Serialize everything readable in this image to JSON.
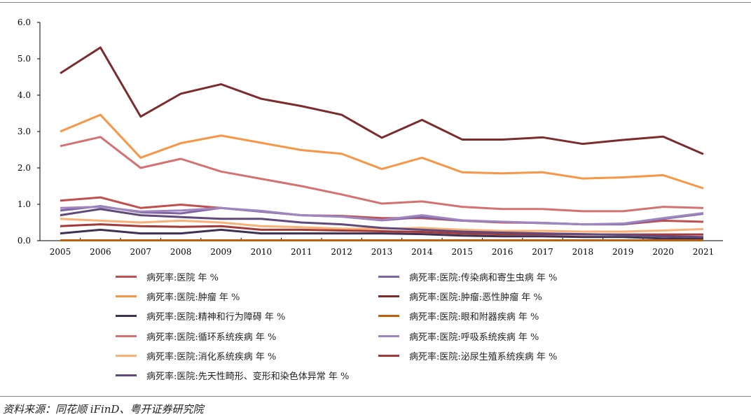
{
  "chart_data": {
    "type": "line",
    "title": "",
    "xlabel": "",
    "ylabel": "",
    "ylim": [
      0,
      6
    ],
    "yticks": [
      "0.0",
      "1.0",
      "2.0",
      "3.0",
      "4.0",
      "5.0",
      "6.0"
    ],
    "x": [
      "2005",
      "2006",
      "2007",
      "2008",
      "2009",
      "2010",
      "2011",
      "2012",
      "2013",
      "2014",
      "2015",
      "2016",
      "2017",
      "2018",
      "2019",
      "2020",
      "2021"
    ],
    "legend_position": "bottom",
    "series": [
      {
        "name": "病死率:医院 年%",
        "color": "#C0504D",
        "values": [
          1.1,
          1.19,
          0.9,
          0.99,
          0.9,
          0.8,
          0.7,
          0.68,
          0.62,
          0.62,
          0.55,
          0.5,
          0.49,
          0.45,
          0.45,
          0.55,
          0.52
        ]
      },
      {
        "name": "病死率:医院:传染病和寄生虫病 年%",
        "color": "#8064A2",
        "values": [
          0.83,
          0.95,
          0.78,
          0.75,
          0.9,
          0.8,
          0.7,
          0.66,
          0.56,
          0.65,
          0.55,
          0.52,
          0.48,
          0.45,
          0.45,
          0.6,
          0.74
        ]
      },
      {
        "name": "病死率:医院:肿瘤 年%",
        "color": "#F79646",
        "values": [
          3.0,
          3.46,
          2.28,
          2.68,
          2.89,
          2.69,
          2.49,
          2.39,
          1.97,
          2.28,
          1.88,
          1.85,
          1.88,
          1.71,
          1.74,
          1.8,
          1.44
        ]
      },
      {
        "name": "病死率:医院:肿瘤:恶性肿瘤 年%",
        "color": "#7B2C2C",
        "values": [
          4.6,
          5.31,
          3.41,
          4.04,
          4.3,
          3.9,
          3.7,
          3.46,
          2.83,
          3.32,
          2.78,
          2.78,
          2.84,
          2.66,
          2.77,
          2.86,
          2.38
        ]
      },
      {
        "name": "病死率:医院:精神和行为障碍 年%",
        "color": "#3F3151",
        "values": [
          0.2,
          0.3,
          0.2,
          0.2,
          0.3,
          0.2,
          0.2,
          0.2,
          0.2,
          0.18,
          0.14,
          0.12,
          0.12,
          0.1,
          0.1,
          0.06,
          0.05
        ]
      },
      {
        "name": "病死率:医院:眼和附器疾病 年%",
        "color": "#C0600F",
        "values": [
          0.01,
          0.01,
          0.01,
          0.01,
          0.01,
          0.01,
          0.01,
          0.01,
          0.01,
          0.01,
          0.01,
          0.01,
          0.01,
          0.01,
          0.01,
          0.01,
          0.01
        ]
      },
      {
        "name": "病死率:医院:循环系统疾病 年%",
        "color": "#D47272",
        "values": [
          2.6,
          2.85,
          2.0,
          2.25,
          1.9,
          1.7,
          1.5,
          1.27,
          1.02,
          1.08,
          0.93,
          0.87,
          0.87,
          0.81,
          0.81,
          0.93,
          0.9
        ]
      },
      {
        "name": "病死率:医院:呼吸系统疾病 年%",
        "color": "#9F86C0",
        "values": [
          0.9,
          0.93,
          0.8,
          0.83,
          0.9,
          0.82,
          0.7,
          0.66,
          0.57,
          0.7,
          0.56,
          0.52,
          0.49,
          0.45,
          0.47,
          0.62,
          0.76
        ]
      },
      {
        "name": "病死率:医院:消化系统疾病 年%",
        "color": "#FAB075",
        "values": [
          0.6,
          0.55,
          0.5,
          0.55,
          0.5,
          0.4,
          0.37,
          0.33,
          0.33,
          0.35,
          0.3,
          0.27,
          0.27,
          0.25,
          0.25,
          0.28,
          0.32
        ]
      },
      {
        "name": "病死率:医院:泌尿生殖系统疾病 年%",
        "color": "#A33A3A",
        "values": [
          0.4,
          0.45,
          0.4,
          0.38,
          0.4,
          0.3,
          0.3,
          0.28,
          0.26,
          0.24,
          0.2,
          0.18,
          0.18,
          0.17,
          0.17,
          0.17,
          0.17
        ]
      },
      {
        "name": "病死率:医院:先天性畸形、变形和染色体异常 年%",
        "color": "#604A7B",
        "values": [
          0.7,
          0.87,
          0.7,
          0.65,
          0.6,
          0.6,
          0.5,
          0.45,
          0.35,
          0.3,
          0.25,
          0.22,
          0.2,
          0.18,
          0.16,
          0.12,
          0.1
        ]
      }
    ],
    "legend_labels": [
      "病死率:医院 年 %",
      "病死率:医院:传染病和寄生虫病 年 %",
      "病死率:医院:肿瘤 年 %",
      "病死率:医院:肿瘤:恶性肿瘤 年 %",
      "病死率:医院:精神和行为障碍 年 %",
      "病死率:医院:眼和附器疾病 年 %",
      "病死率:医院:循环系统疾病 年 %",
      "病死率:医院:呼吸系统疾病 年 %",
      "病死率:医院:消化系统疾病 年 %",
      "病死率:医院:泌尿生殖系统疾病 年 %",
      "病死率:医院:先天性畸形、变形和染色体异常 年 %"
    ]
  },
  "source": "资料来源：同花顺 iFinD、粤开证券研究院"
}
